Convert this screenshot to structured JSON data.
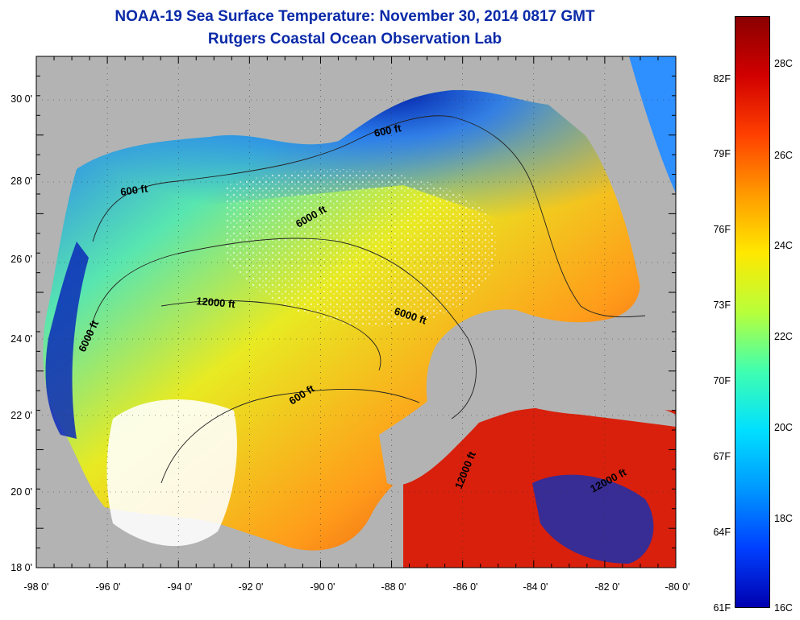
{
  "header": {
    "title": "NOAA-19 Sea Surface Temperature:  November 30, 2014 0817 GMT",
    "subtitle": "Rutgers Coastal Ocean Observation Lab"
  },
  "map": {
    "lon_labels": [
      "-98 0'",
      "-96 0'",
      "-94 0'",
      "-92 0'",
      "-90 0'",
      "-88 0'",
      "-86 0'",
      "-84 0'",
      "-82 0'",
      "-80 0'"
    ],
    "lat_labels": [
      "30 0'",
      "28 0'",
      "26 0'",
      "24 0'",
      "22 0'",
      "20 0'",
      "18 0'"
    ],
    "contours": [
      "600 ft",
      "600 ft",
      "6000 ft",
      "12000 ft",
      "6000 ft",
      "6000 ft",
      "600 ft",
      "12000 ft",
      "12000 ft"
    ]
  },
  "colorbar": {
    "fahrenheit": [
      "82F",
      "79F",
      "76F",
      "73F",
      "70F",
      "67F",
      "64F",
      "61F"
    ],
    "celsius": [
      "28C",
      "26C",
      "24C",
      "22C",
      "20C",
      "18C",
      "16C"
    ],
    "colors": [
      "#8b0000",
      "#d20000",
      "#ff4000",
      "#ff9a00",
      "#ffe800",
      "#b8ff3a",
      "#40ffb0",
      "#00e0ff",
      "#0098ff",
      "#0040ff",
      "#0000b0"
    ]
  },
  "colors": {
    "land": "#b3b3b3",
    "title": "#0a2aa8"
  }
}
